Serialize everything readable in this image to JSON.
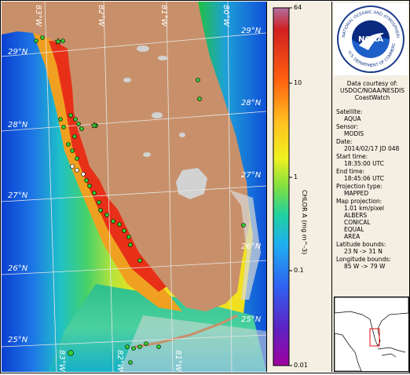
{
  "map": {
    "lat_labels": [
      "29°N",
      "28°N",
      "27°N",
      "26°N",
      "25°N"
    ],
    "lon_labels": [
      "83°W",
      "82°W",
      "81°W",
      "80°W",
      "83°W",
      "82°W",
      "81°W"
    ],
    "colors": {
      "land": "#c8906a",
      "lake": "#d2d2d2",
      "ocean_deep": "#0a3fd0",
      "stations_fill": "#33cc33"
    }
  },
  "scale": {
    "ticks": [
      "64",
      "10",
      "1",
      "0.1",
      "0.01"
    ],
    "axis_title": "CHLOR A (mg m^-3)"
  },
  "info": {
    "logo_text": "NOAA",
    "logo_ring_text": "NATIONAL OCEANIC AND ATMOSPHERIC ADMINISTRATION",
    "logo_ring_text_bottom": "U.S. DEPARTMENT OF COMMERCE",
    "courtesy": [
      "Data courtesy of:",
      "USDOC/NOAA/NESDIS",
      "CoastWatch"
    ],
    "fields": [
      {
        "label": "Satellite:",
        "value": "AQUA"
      },
      {
        "label": "Sensor:",
        "value": "MODIS"
      },
      {
        "label": "Date:",
        "value": "2014/02/17 JD 048"
      },
      {
        "label": "Start time:",
        "value": "18:35:00 UTC"
      },
      {
        "label": "End time:",
        "value": "18:45:06 UTC"
      },
      {
        "label": "Projection type:",
        "value": "MAPPED"
      },
      {
        "label": "Map projection:",
        "value": "1.01 km/pixel"
      },
      {
        "label": "",
        "value": "ALBERS"
      },
      {
        "label": "",
        "value": "CONICAL"
      },
      {
        "label": "",
        "value": "EQUAL"
      },
      {
        "label": "",
        "value": "AREA"
      },
      {
        "label": "Latitude bounds:",
        "value": "23 N -> 31 N"
      },
      {
        "label": "Longitude bounds:",
        "value": "85 W -> 79 W"
      }
    ]
  }
}
